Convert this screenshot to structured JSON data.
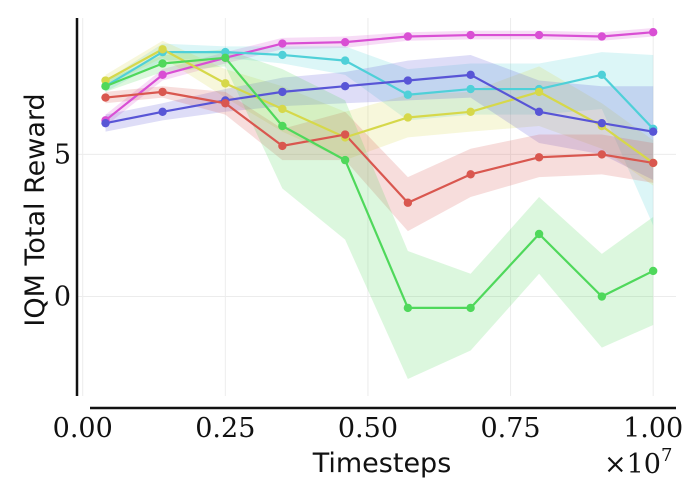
{
  "chart_data": {
    "type": "line",
    "title": "",
    "xlabel": "Timesteps",
    "ylabel": "IQM Total Reward",
    "x_multiplier_label": "×10",
    "x_multiplier_exponent": "7",
    "xlim": [
      -0.01,
      1.04
    ],
    "ylim": [
      -3.5,
      9.8
    ],
    "x_ticks": [
      0.0,
      0.25,
      0.5,
      0.75,
      1.0
    ],
    "x_tick_labels": [
      "0.00",
      "0.25",
      "0.50",
      "0.75",
      "1.00"
    ],
    "y_ticks": [
      0,
      5
    ],
    "y_tick_labels": [
      "0",
      "5"
    ],
    "grid": true,
    "x": [
      0.04,
      0.14,
      0.25,
      0.35,
      0.46,
      0.57,
      0.68,
      0.8,
      0.91,
      1.0
    ],
    "series": [
      {
        "name": "magenta",
        "color": "#d94fd4",
        "values": [
          6.2,
          7.8,
          8.4,
          8.9,
          8.95,
          9.15,
          9.2,
          9.2,
          9.15,
          9.3
        ],
        "lower": [
          6.0,
          7.6,
          8.2,
          8.7,
          8.75,
          9.0,
          9.05,
          9.05,
          9.0,
          9.15
        ],
        "upper": [
          6.4,
          8.0,
          8.6,
          9.1,
          9.15,
          9.3,
          9.35,
          9.35,
          9.3,
          9.45
        ]
      },
      {
        "name": "cyan",
        "color": "#4fd0d8",
        "values": [
          7.4,
          8.6,
          8.6,
          8.5,
          8.3,
          7.1,
          7.3,
          7.3,
          7.8,
          5.9
        ],
        "lower": [
          7.2,
          8.3,
          8.4,
          8.2,
          7.8,
          6.2,
          6.4,
          6.4,
          6.6,
          2.5
        ],
        "upper": [
          7.6,
          8.9,
          8.8,
          8.8,
          8.8,
          8.0,
          8.2,
          8.2,
          8.6,
          8.5
        ]
      },
      {
        "name": "yellow",
        "color": "#d6d84a",
        "values": [
          7.6,
          8.7,
          7.5,
          6.6,
          5.6,
          6.3,
          6.5,
          7.2,
          6.0,
          4.7
        ],
        "lower": [
          7.4,
          8.4,
          7.0,
          5.8,
          4.8,
          5.6,
          5.8,
          6.0,
          5.2,
          3.9
        ],
        "upper": [
          7.8,
          9.0,
          8.0,
          7.4,
          6.5,
          7.1,
          7.2,
          8.1,
          6.8,
          5.5
        ]
      },
      {
        "name": "blue",
        "color": "#5855d6",
        "values": [
          6.1,
          6.5,
          6.9,
          7.2,
          7.4,
          7.6,
          7.8,
          6.5,
          6.1,
          5.8
        ],
        "lower": [
          5.8,
          6.2,
          6.5,
          6.7,
          6.8,
          6.9,
          7.0,
          5.4,
          5.0,
          4.1
        ],
        "upper": [
          6.4,
          6.8,
          7.3,
          7.7,
          7.9,
          8.3,
          8.5,
          7.6,
          7.4,
          7.4
        ]
      },
      {
        "name": "red",
        "color": "#d9574f",
        "values": [
          7.0,
          7.2,
          6.8,
          5.3,
          5.7,
          3.3,
          4.3,
          4.9,
          5.0,
          4.7
        ],
        "lower": [
          6.8,
          7.0,
          6.4,
          4.8,
          4.8,
          2.3,
          3.5,
          4.2,
          4.3,
          4.0
        ],
        "upper": [
          7.2,
          7.4,
          7.2,
          5.9,
          6.5,
          4.2,
          5.2,
          5.7,
          5.7,
          5.4
        ]
      },
      {
        "name": "green",
        "color": "#4fd85b",
        "values": [
          7.4,
          8.2,
          8.4,
          6.0,
          4.8,
          -0.4,
          -0.4,
          2.2,
          0.0,
          0.9
        ],
        "lower": [
          7.2,
          7.9,
          8.1,
          3.8,
          2.0,
          -2.9,
          -1.9,
          0.8,
          -1.8,
          -1.0
        ],
        "upper": [
          7.6,
          8.5,
          8.7,
          8.0,
          6.9,
          1.6,
          0.8,
          3.5,
          1.5,
          2.8
        ]
      }
    ]
  }
}
